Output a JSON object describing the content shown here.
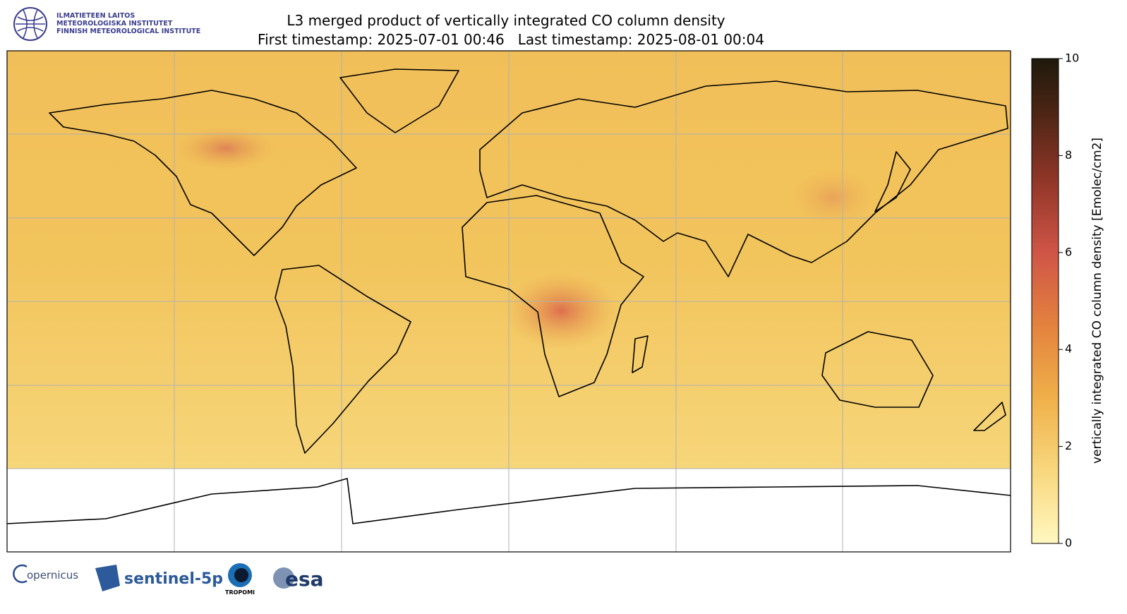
{
  "header": {
    "logo_lines": [
      "ILMATIETEEN LAITOS",
      "METEOROLOGISKA INSTITUTET",
      "FINNISH METEOROLOGICAL INSTITUTE"
    ],
    "title": "L3 merged product of vertically integrated CO column density",
    "subtitle": "First timestamp: 2025-07-01 00:46   Last timestamp: 2025-08-01 00:04"
  },
  "colorbar": {
    "label": "vertically integrated CO column density [Emolec/cm2]",
    "lim": [
      0,
      10
    ],
    "ticks": [
      0,
      2,
      4,
      6,
      8,
      10
    ]
  },
  "footer": {
    "logos": [
      "opernicus",
      "sentinel-5p",
      "TROPOMI",
      "esa"
    ]
  }
}
